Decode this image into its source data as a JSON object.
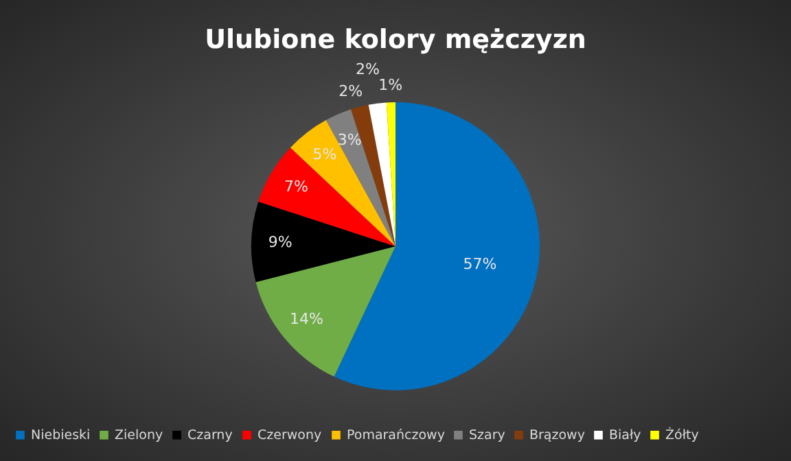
{
  "chart_data": {
    "type": "pie",
    "title": "Ulubione kolory mężczyzn",
    "categories": [
      "Niebieski",
      "Zielony",
      "Czarny",
      "Czerwony",
      "Pomarańczowy",
      "Szary",
      "Brązowy",
      "Biały",
      "Żółty"
    ],
    "values": [
      57,
      14,
      9,
      7,
      5,
      3,
      2,
      2,
      1
    ],
    "colors": [
      "#0070c0",
      "#70ad47",
      "#000000",
      "#ff0000",
      "#ffc000",
      "#808080",
      "#843c0c",
      "#ffffff",
      "#ffff00"
    ],
    "value_labels": [
      "57%",
      "14%",
      "9%",
      "7%",
      "5%",
      "3%",
      "2%",
      "2%",
      "1%"
    ],
    "legend": "bottom"
  }
}
